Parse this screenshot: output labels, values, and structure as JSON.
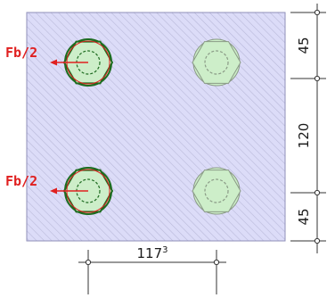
{
  "colors": {
    "plate_fill": "#dcdcf8",
    "hatch": "#b9b9d9",
    "plate_outline": "#8f8fb8",
    "bolt_fill": "#cdeec9",
    "bolt_outline_loaded": "#1e6b20",
    "bolt_outline_unloaded": "#8a9a86",
    "force": "#e02020",
    "dimension": "#333333"
  },
  "force_labels": {
    "top": "Fb/2",
    "bottom": "Fb/2"
  },
  "dimensions": {
    "vertical": {
      "top_edge": "45",
      "bolt_spacing": "120",
      "bottom_edge": "45"
    },
    "horizontal": {
      "value": "117",
      "superscript": "3"
    }
  },
  "bolts": [
    {
      "row": "top",
      "col": "left",
      "loaded": true
    },
    {
      "row": "top",
      "col": "right",
      "loaded": false
    },
    {
      "row": "bottom",
      "col": "left",
      "loaded": true
    },
    {
      "row": "bottom",
      "col": "right",
      "loaded": false
    }
  ]
}
